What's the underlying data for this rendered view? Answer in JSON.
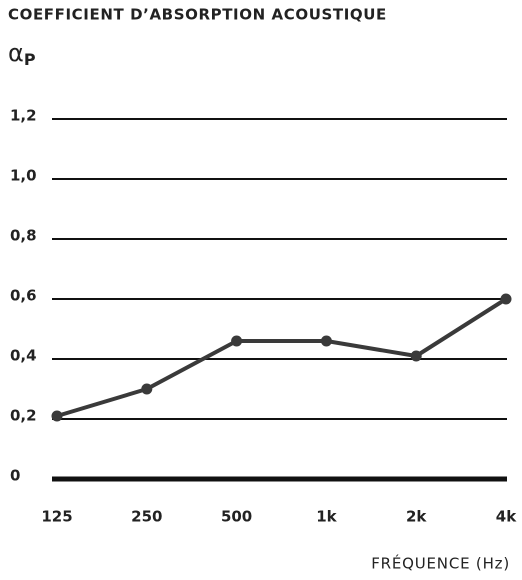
{
  "chart_data": {
    "type": "line",
    "title": "COEFFICIENT D’ABSORPTION ACOUSTIQUE",
    "y_label": {
      "symbol": "α",
      "subscript": "P"
    },
    "x_label": "FRÉQUENCE (Hz)",
    "categories": [
      "125",
      "250",
      "500",
      "1k",
      "2k",
      "4k"
    ],
    "series": [
      {
        "color": "#3a3a3a",
        "values": [
          0.21,
          0.3,
          0.46,
          0.46,
          0.41,
          0.6
        ]
      }
    ],
    "ylim": [
      0,
      1.2
    ],
    "yticks": [
      0,
      {
        "value": 0.2,
        "label": "0,2"
      },
      {
        "value": 0.4,
        "label": "0,4"
      },
      {
        "value": 0.6,
        "label": "0,6"
      },
      {
        "value": 0.8,
        "label": "0,8"
      },
      {
        "value": 1.0,
        "label": "1,0"
      },
      {
        "value": 1.2,
        "label": "1,2"
      }
    ],
    "grid": true
  }
}
